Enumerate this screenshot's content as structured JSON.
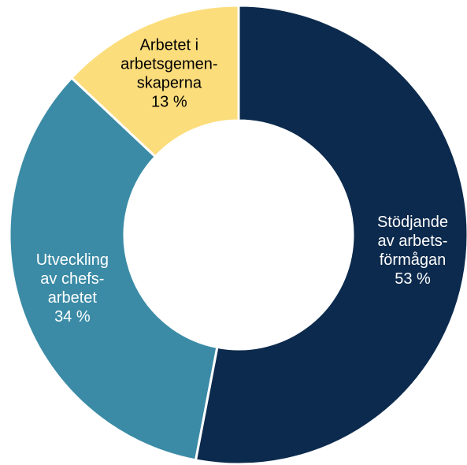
{
  "chart_data": {
    "type": "donut",
    "categories": [
      [
        "Stödjande",
        "av arbets-",
        "förmågan"
      ],
      [
        "Utveckling",
        "av chefs-",
        "arbetet"
      ],
      [
        "Arbetet i",
        "arbetsgemen-",
        "skaperna"
      ]
    ],
    "values": [
      53,
      34,
      13
    ],
    "value_labels": [
      "53 %",
      "34 %",
      "13 %"
    ],
    "colors": [
      "#0c2a4d",
      "#3b8ba6",
      "#fcdd7c"
    ],
    "label_colors": [
      "#ffffff",
      "#ffffff",
      "#000000"
    ]
  }
}
